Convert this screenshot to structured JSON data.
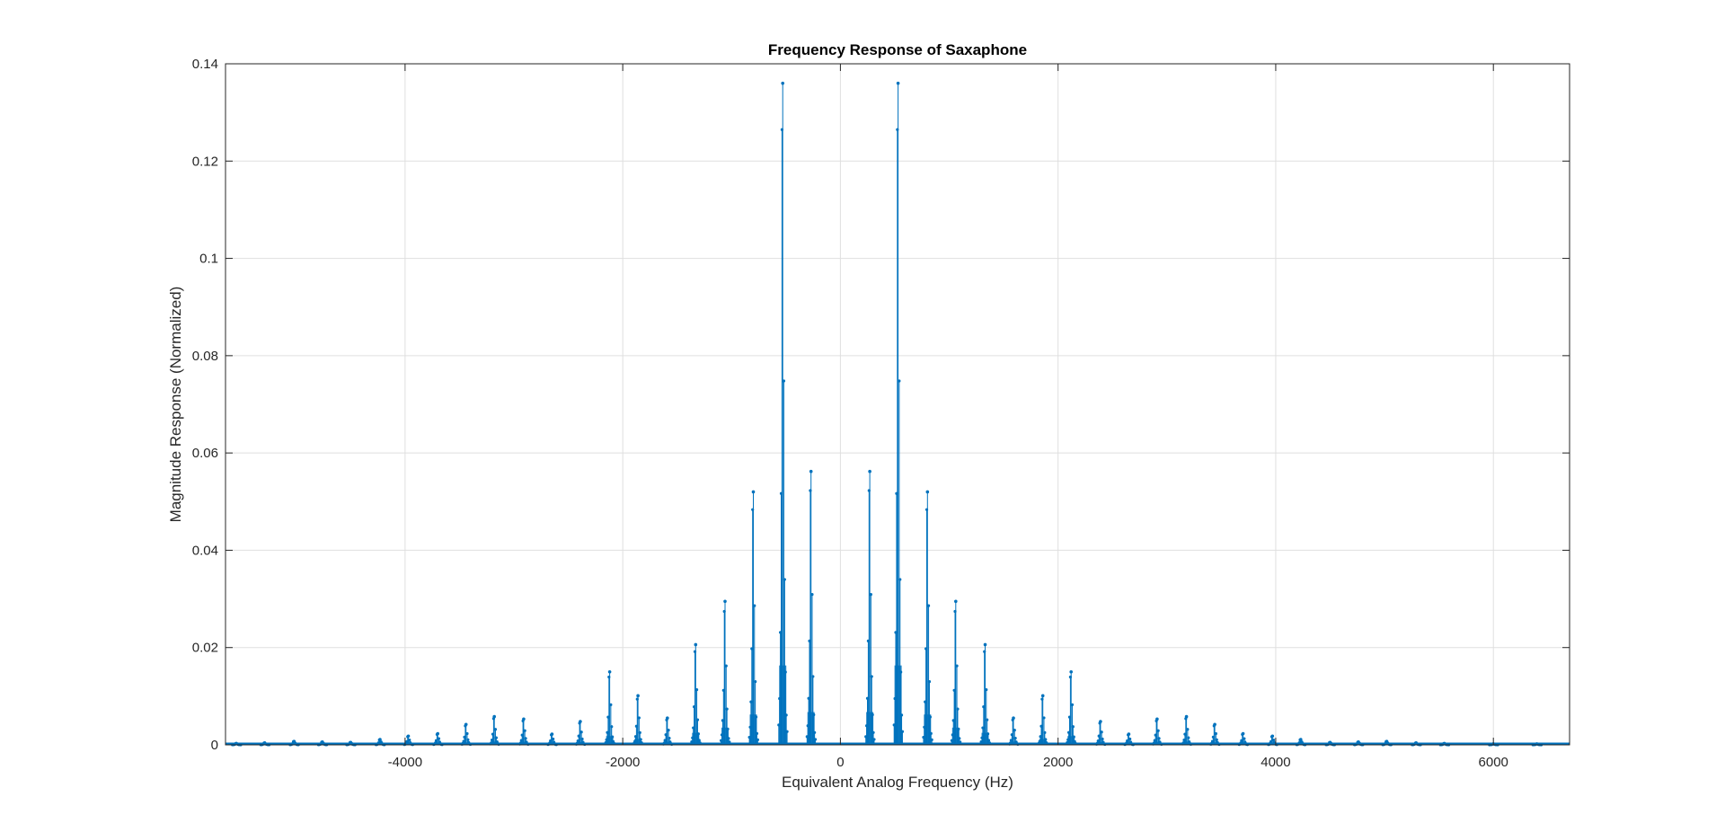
{
  "chart_data": {
    "type": "stem",
    "title": "Frequency Response of Saxaphone",
    "xlabel": "Equivalent Analog Frequency (Hz)",
    "ylabel": "Magnitude Response (Normalized)",
    "xlim": [
      -5650,
      6700
    ],
    "ylim": [
      0,
      0.14
    ],
    "xticks": [
      -4000,
      -2000,
      0,
      2000,
      4000,
      6000
    ],
    "xtick_labels": [
      "-4000",
      "-2000",
      "0",
      "2000",
      "4000",
      "6000"
    ],
    "yticks": [
      0,
      0.02,
      0.04,
      0.06,
      0.08,
      0.1,
      0.12,
      0.14
    ],
    "ytick_labels": [
      "0",
      "0.02",
      "0.04",
      "0.06",
      "0.08",
      "0.1",
      "0.12",
      "0.14"
    ],
    "grid": true,
    "series": [
      {
        "color": "#0072BD",
        "x": [
          -5550,
          -5290,
          -5020,
          -4760,
          -4500,
          -4230,
          -3970,
          -3700,
          -3440,
          -3180,
          -2910,
          -2650,
          -2390,
          -2120,
          -1860,
          -1590,
          -1330,
          -1060,
          -800,
          -530,
          -270,
          270,
          530,
          800,
          1060,
          1330,
          1590,
          1860,
          2120,
          2390,
          2650,
          2910,
          3180,
          3440,
          3700,
          3970,
          4230,
          4500,
          4760,
          5020,
          5290,
          5550,
          6000,
          6400
        ],
        "y": [
          0.0003,
          0.0004,
          0.0007,
          0.0006,
          0.0005,
          0.0011,
          0.0018,
          0.0023,
          0.0042,
          0.0058,
          0.0053,
          0.0022,
          0.0048,
          0.015,
          0.0101,
          0.0055,
          0.0206,
          0.0295,
          0.052,
          0.136,
          0.0562,
          0.0562,
          0.136,
          0.052,
          0.0295,
          0.0206,
          0.0055,
          0.0101,
          0.015,
          0.0048,
          0.0022,
          0.0053,
          0.0058,
          0.0042,
          0.0023,
          0.0018,
          0.0011,
          0.0005,
          0.0006,
          0.0007,
          0.0004,
          0.0003,
          0.0002,
          0.0002
        ]
      }
    ]
  }
}
